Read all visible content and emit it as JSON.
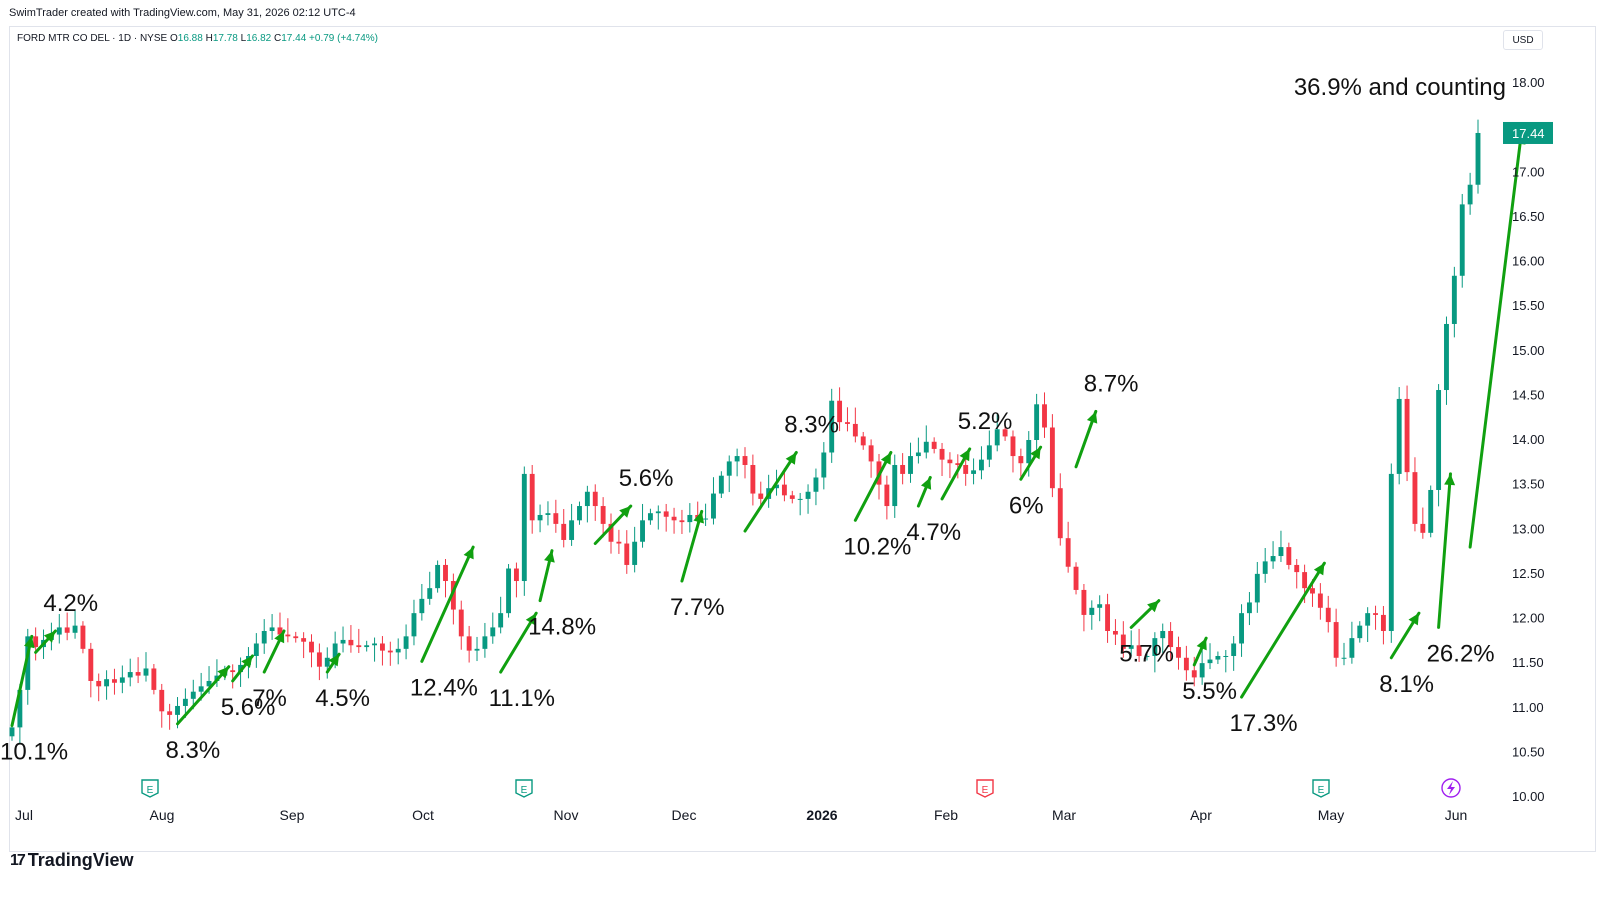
{
  "header": {
    "created": "SwimTrader created with TradingView.com, May 31, 2026 02:12 UTC-4",
    "symbol": "FORD MTR CO DEL · 1D · NYSE",
    "o_label": "O",
    "o": "16.88",
    "h_label": "H",
    "h": "17.78",
    "l_label": "L",
    "l": "16.82",
    "c_label": "C",
    "c": "17.44",
    "change": "+0.79 (+4.74%)",
    "currency": "USD"
  },
  "brand": {
    "name": "TradingView",
    "mark": "17"
  },
  "colors": {
    "up": "#089981",
    "down": "#f23645",
    "arrow": "#10a010",
    "earnings": "#089981",
    "dividend": "#a020f0"
  },
  "chart_data": {
    "type": "candlestick",
    "y_ticks": [
      "18.00",
      "17.50",
      "17.00",
      "16.50",
      "16.00",
      "15.50",
      "15.00",
      "14.50",
      "14.00",
      "13.50",
      "13.00",
      "12.50",
      "12.00",
      "11.50",
      "11.00",
      "10.50",
      "10.00"
    ],
    "ylim": [
      10.0,
      18.0
    ],
    "x_labels": [
      "Jul",
      "Aug",
      "Sep",
      "Oct",
      "Nov",
      "Dec",
      "2026",
      "Feb",
      "Mar",
      "Apr",
      "May",
      "Jun"
    ],
    "last_price": "17.44",
    "closes": [
      10.78,
      11.2,
      11.8,
      11.68,
      11.76,
      11.82,
      11.9,
      11.84,
      11.92,
      11.66,
      11.3,
      11.24,
      11.32,
      11.28,
      11.34,
      11.4,
      11.36,
      11.44,
      11.2,
      10.96,
      10.92,
      11.02,
      11.1,
      11.18,
      11.24,
      11.3,
      11.36,
      11.42,
      11.4,
      11.48,
      11.58,
      11.72,
      11.86,
      11.9,
      11.82,
      11.8,
      11.78,
      11.74,
      11.62,
      11.46,
      11.56,
      11.72,
      11.76,
      11.7,
      11.68,
      11.7,
      11.72,
      11.64,
      11.62,
      11.66,
      11.8,
      12.06,
      12.22,
      12.34,
      12.6,
      12.42,
      12.1,
      11.8,
      11.64,
      11.66,
      11.8,
      11.9,
      12.06,
      12.56,
      12.42,
      13.62,
      13.1,
      13.16,
      13.18,
      13.06,
      12.88,
      13.1,
      13.26,
      13.42,
      13.26,
      13.06,
      12.86,
      12.84,
      12.6,
      12.86,
      13.1,
      13.18,
      13.2,
      13.14,
      13.1,
      13.08,
      13.16,
      13.12,
      13.12,
      13.4,
      13.6,
      13.76,
      13.82,
      13.72,
      13.4,
      13.34,
      13.46,
      13.5,
      13.38,
      13.34,
      13.34,
      13.42,
      13.58,
      13.86,
      14.44,
      14.2,
      14.18,
      14.04,
      13.94,
      13.76,
      13.5,
      13.26,
      13.72,
      13.62,
      13.82,
      13.86,
      13.98,
      13.9,
      13.78,
      13.74,
      13.72,
      13.62,
      13.66,
      13.78,
      13.94,
      14.12,
      14.04,
      13.82,
      13.74,
      14.0,
      14.4,
      14.14,
      13.46,
      12.9,
      12.58,
      12.32,
      12.04,
      12.12,
      12.16,
      11.86,
      11.82,
      11.66,
      11.7,
      11.58,
      11.58,
      11.78,
      11.86,
      11.68,
      11.56,
      11.42,
      11.34,
      11.5,
      11.54,
      11.58,
      11.58,
      11.72,
      12.06,
      12.18,
      12.5,
      12.64,
      12.7,
      12.8,
      12.6,
      12.52,
      12.34,
      12.28,
      12.12,
      11.96,
      11.56,
      11.56,
      11.78,
      11.92,
      12.06,
      12.04,
      11.86,
      13.62,
      14.46,
      13.64,
      13.06,
      12.96,
      13.44,
      14.56,
      15.3,
      15.84,
      16.64,
      16.86,
      17.44
    ],
    "arrows": [
      {
        "label": "10.1%",
        "from": [
          0,
          10.8
        ],
        "to": [
          2,
          11.8
        ]
      },
      {
        "label": "4.2%",
        "from": [
          3,
          11.62
        ],
        "to": [
          5,
          11.86
        ]
      },
      {
        "label": "8.3%",
        "from": [
          21,
          10.82
        ],
        "to": [
          27,
          11.46
        ]
      },
      {
        "label": "5.6%",
        "from": [
          28,
          11.3
        ],
        "to": [
          30,
          11.58
        ]
      },
      {
        "label": "7%",
        "from": [
          32,
          11.4
        ],
        "to": [
          34,
          11.86
        ]
      },
      {
        "label": "4.5%",
        "from": [
          40,
          11.4
        ],
        "to": [
          41,
          11.6
        ]
      },
      {
        "label": "12.4%",
        "from": [
          52,
          11.52
        ],
        "to": [
          58,
          12.8
        ]
      },
      {
        "label": "11.1%",
        "from": [
          62,
          11.4
        ],
        "to": [
          66,
          12.06
        ]
      },
      {
        "label": "14.8%",
        "from": [
          67,
          12.2
        ],
        "to": [
          68,
          12.76
        ]
      },
      {
        "label": "5.6%",
        "from": [
          74,
          12.84
        ],
        "to": [
          78,
          13.26
        ]
      },
      {
        "label": "7.7%",
        "from": [
          85,
          12.42
        ],
        "to": [
          87,
          13.2
        ]
      },
      {
        "label": "8.3%",
        "from": [
          93,
          12.98
        ],
        "to": [
          99,
          13.86
        ]
      },
      {
        "label": "10.2%",
        "from": [
          107,
          13.1
        ],
        "to": [
          111,
          13.86
        ]
      },
      {
        "label": "4.7%",
        "from": [
          115,
          13.26
        ],
        "to": [
          116,
          13.58
        ]
      },
      {
        "label": "5.2%",
        "from": [
          118,
          13.34
        ],
        "to": [
          121,
          13.9
        ]
      },
      {
        "label": "6%",
        "from": [
          128,
          13.56
        ],
        "to": [
          130,
          13.92
        ]
      },
      {
        "label": "8.7%",
        "from": [
          135,
          13.7
        ],
        "to": [
          137,
          14.32
        ]
      },
      {
        "label": "5.7%",
        "from": [
          142,
          11.9
        ],
        "to": [
          145,
          12.2
        ]
      },
      {
        "label": "5.5%",
        "from": [
          150,
          11.48
        ],
        "to": [
          151,
          11.78
        ]
      },
      {
        "label": "17.3%",
        "from": [
          156,
          11.12
        ],
        "to": [
          166,
          12.62
        ]
      },
      {
        "label": "8.1%",
        "from": [
          175,
          11.56
        ],
        "to": [
          178,
          12.06
        ]
      },
      {
        "label": "26.2%",
        "from": [
          181,
          11.9
        ],
        "to": [
          182,
          13.62
        ]
      },
      {
        "label": "36.9% and counting",
        "from": [
          185,
          12.8
        ],
        "to": [
          191,
          17.44
        ]
      }
    ]
  }
}
